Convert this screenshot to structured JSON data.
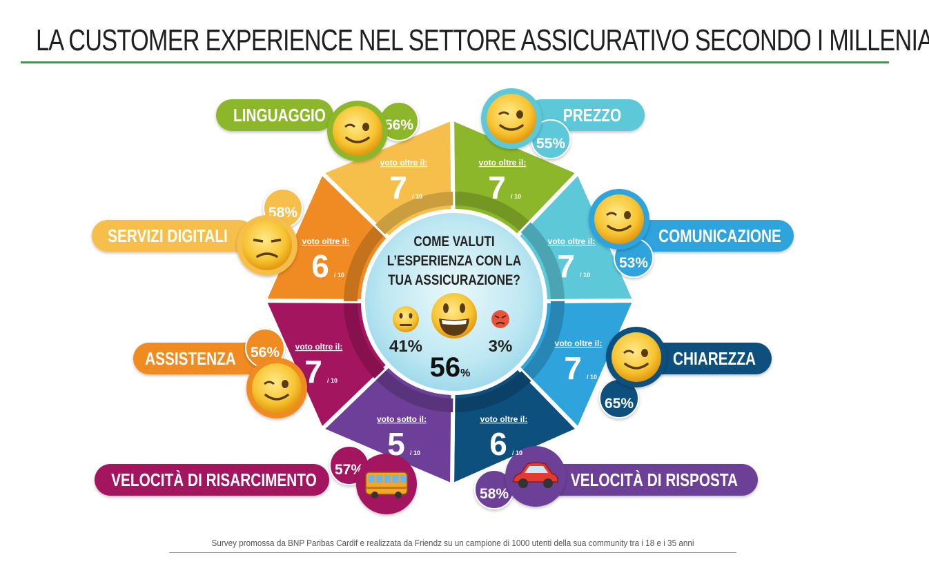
{
  "title": "LA CUSTOMER EXPERIENCE NEL SETTORE ASSICURATIVO SECONDO I MILLENIALS",
  "footer": "Survey promossa da BNP Paribas Cardif e realizzata da Friendz su un campione di 1000 utenti della sua community tra i 18 e i 35 anni",
  "center": {
    "question_lines": [
      "COME VALUTI",
      "L’ESPERIENZA CON LA",
      "TUA ASSICURAZIONE?"
    ],
    "neutral_pct": "41%",
    "happy_pct": "56",
    "happy_unit": "%",
    "angry_pct": "3%"
  },
  "score_unit": "/ 10",
  "colors": {
    "green": "#8db72b",
    "light_blue": "#5cc8d8",
    "sky_blue": "#2fa3dc",
    "navy": "#0d4f7d",
    "purple": "#6d3f98",
    "magenta": "#a3155f",
    "orange": "#f08b23",
    "yellow": "#f6bf4c",
    "title_rule": "#2aa24a"
  },
  "categories": [
    {
      "label": "LINGUAGGIO",
      "pct": "56%",
      "vote_text": "voto oltre il:",
      "score": "7",
      "icon": "wink-face-icon",
      "color": "#8db72b"
    },
    {
      "label": "PREZZO",
      "pct": "55%",
      "vote_text": "voto oltre il:",
      "score": "7",
      "icon": "wink-face-icon",
      "color": "#5cc8d8"
    },
    {
      "label": "COMUNICAZIONE",
      "pct": "53%",
      "vote_text": "voto oltre il:",
      "score": "7",
      "icon": "wink-face-icon",
      "color": "#2fa3dc"
    },
    {
      "label": "CHIAREZZA",
      "pct": "65%",
      "vote_text": "voto oltre il:",
      "score": "7",
      "icon": "wink-face-icon",
      "color": "#0d4f7d"
    },
    {
      "label": "VELOCITÀ DI RISPOSTA",
      "pct": "58%",
      "vote_text": "voto oltre il:",
      "score": "6",
      "icon": "car-icon",
      "color": "#6d3f98"
    },
    {
      "label": "VELOCITÀ DI RISARCIMENTO",
      "pct": "57%",
      "vote_text": "voto sotto il:",
      "score": "5",
      "icon": "bus-icon",
      "color": "#a3155f"
    },
    {
      "label": "ASSISTENZA",
      "pct": "56%",
      "vote_text": "voto oltre il:",
      "score": "7",
      "icon": "wink-face-icon",
      "color": "#f08b23"
    },
    {
      "label": "SERVIZI DIGITALI",
      "pct": "58%",
      "vote_text": "voto oltre il:",
      "score": "6",
      "icon": "unamused-face-icon",
      "color": "#f6bf4c"
    }
  ]
}
